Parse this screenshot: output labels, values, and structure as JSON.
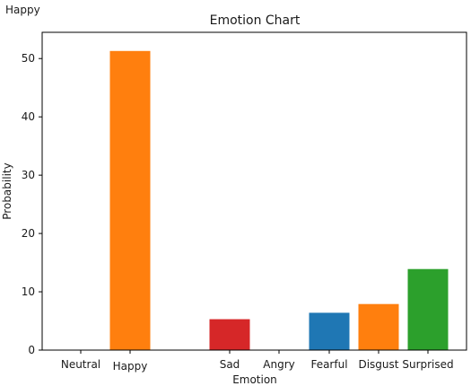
{
  "caption": "Happy",
  "chart_data": {
    "type": "bar",
    "title": "Emotion Chart",
    "xlabel": "Emotion",
    "ylabel": "Probability",
    "categories": [
      "Neutral",
      "Happy",
      "Sad",
      "Angry",
      "Fearful",
      "Disgust",
      "Surprised"
    ],
    "values": [
      0,
      51.3,
      5.3,
      0,
      6.4,
      7.9,
      13.9
    ],
    "colors": [
      "#1f77b4",
      "#ff7f0e",
      "#d62728",
      "#9467bd",
      "#1f77b4",
      "#ff7f0e",
      "#2ca02c"
    ],
    "ylim": [
      0,
      54.5
    ],
    "yticks": [
      0,
      10,
      20,
      30,
      40,
      50
    ],
    "grid": false,
    "legend": "none"
  }
}
